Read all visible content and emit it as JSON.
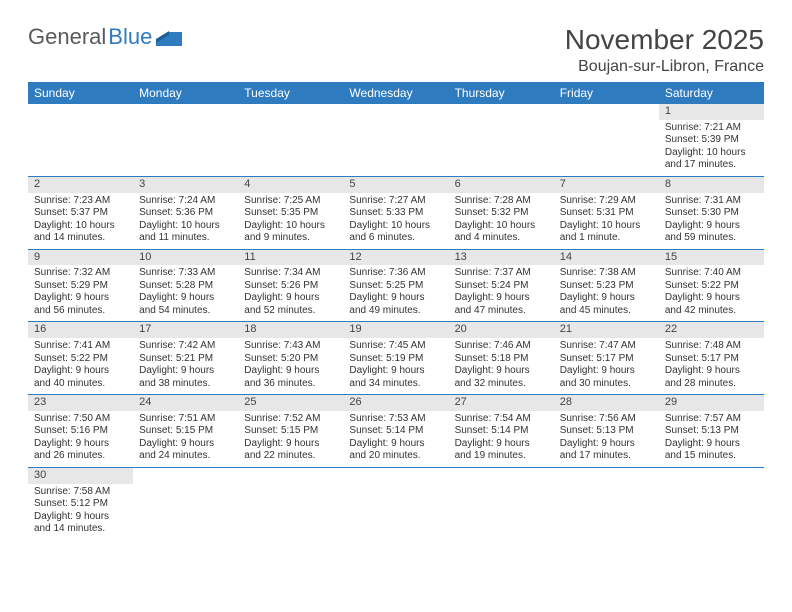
{
  "brand": {
    "part1": "General",
    "part2": "Blue"
  },
  "title": "November 2025",
  "location": "Boujan-sur-Libron, France",
  "colors": {
    "header_bg": "#2f7bbf",
    "header_text": "#ffffff",
    "daybar_bg": "#e7e7e7",
    "rule": "#2f7bbf",
    "text": "#333333",
    "brand_gray": "#5a5a5a",
    "brand_blue": "#2f7bbf",
    "background": "#ffffff"
  },
  "typography": {
    "title_fontsize_pt": 21,
    "location_fontsize_pt": 12,
    "weekday_fontsize_pt": 9,
    "cell_fontsize_pt": 7.5,
    "font_family": "Arial"
  },
  "weekdays": [
    "Sunday",
    "Monday",
    "Tuesday",
    "Wednesday",
    "Thursday",
    "Friday",
    "Saturday"
  ],
  "weeks": [
    [
      null,
      null,
      null,
      null,
      null,
      null,
      {
        "n": "1",
        "sr": "Sunrise: 7:21 AM",
        "ss": "Sunset: 5:39 PM",
        "dl": "Daylight: 10 hours and 17 minutes."
      }
    ],
    [
      {
        "n": "2",
        "sr": "Sunrise: 7:23 AM",
        "ss": "Sunset: 5:37 PM",
        "dl": "Daylight: 10 hours and 14 minutes."
      },
      {
        "n": "3",
        "sr": "Sunrise: 7:24 AM",
        "ss": "Sunset: 5:36 PM",
        "dl": "Daylight: 10 hours and 11 minutes."
      },
      {
        "n": "4",
        "sr": "Sunrise: 7:25 AM",
        "ss": "Sunset: 5:35 PM",
        "dl": "Daylight: 10 hours and 9 minutes."
      },
      {
        "n": "5",
        "sr": "Sunrise: 7:27 AM",
        "ss": "Sunset: 5:33 PM",
        "dl": "Daylight: 10 hours and 6 minutes."
      },
      {
        "n": "6",
        "sr": "Sunrise: 7:28 AM",
        "ss": "Sunset: 5:32 PM",
        "dl": "Daylight: 10 hours and 4 minutes."
      },
      {
        "n": "7",
        "sr": "Sunrise: 7:29 AM",
        "ss": "Sunset: 5:31 PM",
        "dl": "Daylight: 10 hours and 1 minute."
      },
      {
        "n": "8",
        "sr": "Sunrise: 7:31 AM",
        "ss": "Sunset: 5:30 PM",
        "dl": "Daylight: 9 hours and 59 minutes."
      }
    ],
    [
      {
        "n": "9",
        "sr": "Sunrise: 7:32 AM",
        "ss": "Sunset: 5:29 PM",
        "dl": "Daylight: 9 hours and 56 minutes."
      },
      {
        "n": "10",
        "sr": "Sunrise: 7:33 AM",
        "ss": "Sunset: 5:28 PM",
        "dl": "Daylight: 9 hours and 54 minutes."
      },
      {
        "n": "11",
        "sr": "Sunrise: 7:34 AM",
        "ss": "Sunset: 5:26 PM",
        "dl": "Daylight: 9 hours and 52 minutes."
      },
      {
        "n": "12",
        "sr": "Sunrise: 7:36 AM",
        "ss": "Sunset: 5:25 PM",
        "dl": "Daylight: 9 hours and 49 minutes."
      },
      {
        "n": "13",
        "sr": "Sunrise: 7:37 AM",
        "ss": "Sunset: 5:24 PM",
        "dl": "Daylight: 9 hours and 47 minutes."
      },
      {
        "n": "14",
        "sr": "Sunrise: 7:38 AM",
        "ss": "Sunset: 5:23 PM",
        "dl": "Daylight: 9 hours and 45 minutes."
      },
      {
        "n": "15",
        "sr": "Sunrise: 7:40 AM",
        "ss": "Sunset: 5:22 PM",
        "dl": "Daylight: 9 hours and 42 minutes."
      }
    ],
    [
      {
        "n": "16",
        "sr": "Sunrise: 7:41 AM",
        "ss": "Sunset: 5:22 PM",
        "dl": "Daylight: 9 hours and 40 minutes."
      },
      {
        "n": "17",
        "sr": "Sunrise: 7:42 AM",
        "ss": "Sunset: 5:21 PM",
        "dl": "Daylight: 9 hours and 38 minutes."
      },
      {
        "n": "18",
        "sr": "Sunrise: 7:43 AM",
        "ss": "Sunset: 5:20 PM",
        "dl": "Daylight: 9 hours and 36 minutes."
      },
      {
        "n": "19",
        "sr": "Sunrise: 7:45 AM",
        "ss": "Sunset: 5:19 PM",
        "dl": "Daylight: 9 hours and 34 minutes."
      },
      {
        "n": "20",
        "sr": "Sunrise: 7:46 AM",
        "ss": "Sunset: 5:18 PM",
        "dl": "Daylight: 9 hours and 32 minutes."
      },
      {
        "n": "21",
        "sr": "Sunrise: 7:47 AM",
        "ss": "Sunset: 5:17 PM",
        "dl": "Daylight: 9 hours and 30 minutes."
      },
      {
        "n": "22",
        "sr": "Sunrise: 7:48 AM",
        "ss": "Sunset: 5:17 PM",
        "dl": "Daylight: 9 hours and 28 minutes."
      }
    ],
    [
      {
        "n": "23",
        "sr": "Sunrise: 7:50 AM",
        "ss": "Sunset: 5:16 PM",
        "dl": "Daylight: 9 hours and 26 minutes."
      },
      {
        "n": "24",
        "sr": "Sunrise: 7:51 AM",
        "ss": "Sunset: 5:15 PM",
        "dl": "Daylight: 9 hours and 24 minutes."
      },
      {
        "n": "25",
        "sr": "Sunrise: 7:52 AM",
        "ss": "Sunset: 5:15 PM",
        "dl": "Daylight: 9 hours and 22 minutes."
      },
      {
        "n": "26",
        "sr": "Sunrise: 7:53 AM",
        "ss": "Sunset: 5:14 PM",
        "dl": "Daylight: 9 hours and 20 minutes."
      },
      {
        "n": "27",
        "sr": "Sunrise: 7:54 AM",
        "ss": "Sunset: 5:14 PM",
        "dl": "Daylight: 9 hours and 19 minutes."
      },
      {
        "n": "28",
        "sr": "Sunrise: 7:56 AM",
        "ss": "Sunset: 5:13 PM",
        "dl": "Daylight: 9 hours and 17 minutes."
      },
      {
        "n": "29",
        "sr": "Sunrise: 7:57 AM",
        "ss": "Sunset: 5:13 PM",
        "dl": "Daylight: 9 hours and 15 minutes."
      }
    ],
    [
      {
        "n": "30",
        "sr": "Sunrise: 7:58 AM",
        "ss": "Sunset: 5:12 PM",
        "dl": "Daylight: 9 hours and 14 minutes."
      },
      null,
      null,
      null,
      null,
      null,
      null
    ]
  ]
}
